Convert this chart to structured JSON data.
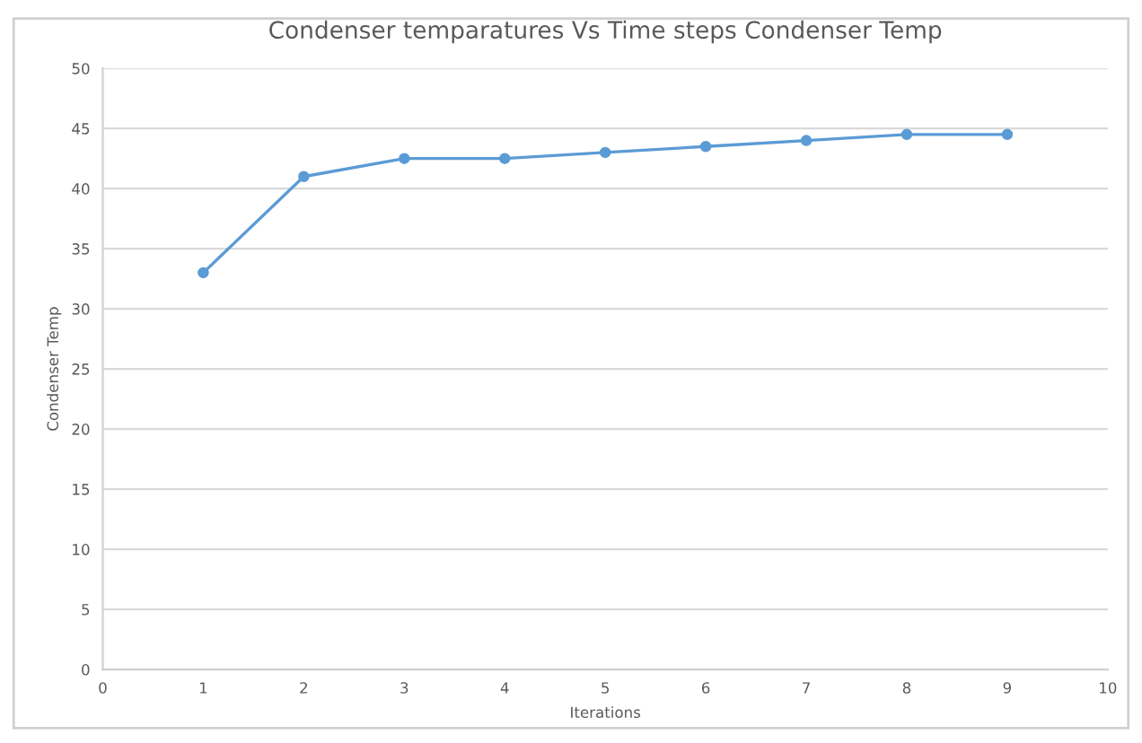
{
  "chart_data": {
    "type": "line",
    "title": "Condenser temparatures Vs Time steps Condenser Temp",
    "xlabel": "Iterations",
    "ylabel": "Condenser Temp",
    "x": [
      1,
      2,
      3,
      4,
      5,
      6,
      7,
      8,
      9
    ],
    "series": [
      {
        "color": "#5b9bd5",
        "values": [
          33,
          41,
          42.5,
          42.5,
          43,
          43.5,
          44,
          44.5,
          44.5
        ]
      }
    ],
    "xlim": [
      0,
      10
    ],
    "xticks": [
      0,
      1,
      2,
      3,
      4,
      5,
      6,
      7,
      8,
      9,
      10
    ],
    "ylim": [
      0,
      50
    ],
    "yticks": [
      0,
      5,
      10,
      15,
      20,
      25,
      30,
      35,
      40,
      45,
      50
    ],
    "grid": "y",
    "marker": "circle",
    "line_style": "solid"
  }
}
